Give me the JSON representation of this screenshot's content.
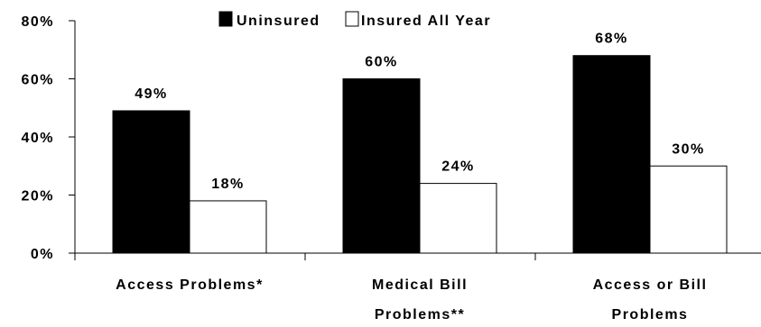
{
  "chart_data": {
    "type": "bar",
    "categories": [
      [
        "Access Problems*"
      ],
      [
        "Medical Bill",
        "Problems**"
      ],
      [
        "Access or Bill",
        "Problems"
      ]
    ],
    "series": [
      {
        "name": "Uninsured",
        "values": [
          49,
          60,
          68
        ],
        "color": "#000000",
        "value_labels": [
          "49%",
          "60%",
          "68%"
        ]
      },
      {
        "name": "Insured All Year",
        "values": [
          18,
          24,
          30
        ],
        "color": "#ffffff",
        "value_labels": [
          "18%",
          "24%",
          "30%"
        ]
      }
    ],
    "ylim": [
      0,
      80
    ],
    "ytick_labels": [
      "0%",
      "20%",
      "40%",
      "60%",
      "80%"
    ],
    "ytick_values": [
      0,
      20,
      40,
      60,
      80
    ],
    "grid": false,
    "legend_position": "top-center"
  }
}
